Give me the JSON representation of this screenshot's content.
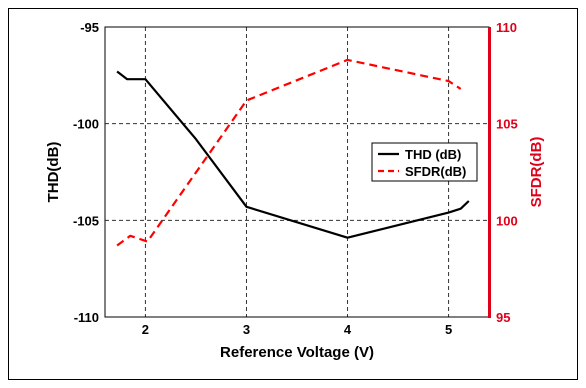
{
  "chart_data": {
    "type": "line",
    "xlabel": "Reference Voltage (V)",
    "ylabel_left": "THD(dB)",
    "ylabel_right": "SFDR(dB)",
    "xlim": [
      1.6,
      5.4
    ],
    "ylim_left": [
      -110,
      -95
    ],
    "ylim_right": [
      95,
      110
    ],
    "xticks": [
      "2",
      "3",
      "4",
      "5"
    ],
    "yticks_left": [
      "-95",
      "-100",
      "-105",
      "-110"
    ],
    "yticks_right": [
      "110",
      "105",
      "100",
      "95"
    ],
    "grid": true,
    "legend_position": "right",
    "colors": {
      "thd": "#000000",
      "sfdr": "#ff0000",
      "right_axis": "#e0001a"
    },
    "series": [
      {
        "name": "THD (dB)",
        "axis": "left",
        "style": "solid",
        "x": [
          1.72,
          1.82,
          2.0,
          2.5,
          3.0,
          4.0,
          5.0,
          5.12,
          5.2
        ],
        "y": [
          -97.3,
          -97.7,
          -97.7,
          -100.8,
          -104.3,
          -105.9,
          -104.6,
          -104.4,
          -104.0
        ]
      },
      {
        "name": "SFDR(dB)",
        "axis": "right",
        "style": "dashed",
        "x": [
          1.72,
          1.85,
          2.02,
          3.0,
          4.0,
          5.0,
          5.12
        ],
        "y": [
          98.7,
          99.2,
          98.9,
          106.2,
          108.3,
          107.2,
          106.8
        ]
      }
    ]
  }
}
